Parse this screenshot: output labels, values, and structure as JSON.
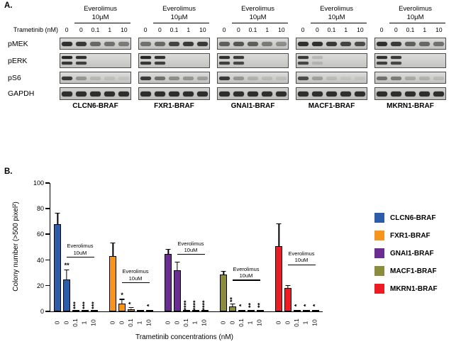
{
  "panelA": {
    "label": "A.",
    "everolimus_line1": "Everolimus",
    "everolimus_line2": "10µM",
    "trametinib_label": "Trametinib (nM)",
    "lane_labels": [
      "0",
      "0",
      "0.1",
      "1",
      "10"
    ],
    "row_labels": [
      "pMEK",
      "pERK",
      "pS6",
      "GAPDH"
    ],
    "blots": [
      {
        "name": "CLCN6-BRAF",
        "bands": {
          "pMEK": [
            0.85,
            0.8,
            0.55,
            0.5,
            0.45
          ],
          "pERK": [
            0.9,
            0.85,
            0,
            0,
            0
          ],
          "pS6": [
            0.8,
            0.3,
            0.12,
            0.08,
            0.05
          ],
          "GAPDH": [
            0.85,
            0.85,
            0.85,
            0.85,
            0.85
          ]
        }
      },
      {
        "name": "FXR1-BRAF",
        "bands": {
          "pMEK": [
            0.5,
            0.55,
            0.75,
            0.8,
            0.8
          ],
          "pERK": [
            0.9,
            0.85,
            0,
            0,
            0
          ],
          "pS6": [
            0.8,
            0.5,
            0.35,
            0.3,
            0.25
          ],
          "GAPDH": [
            0.85,
            0.85,
            0.85,
            0.85,
            0.85
          ]
        }
      },
      {
        "name": "GNAI1-BRAF",
        "bands": {
          "pMEK": [
            0.6,
            0.65,
            0.6,
            0.45,
            0.35
          ],
          "pERK": [
            0.85,
            0.8,
            0,
            0,
            0
          ],
          "pS6": [
            0.8,
            0.3,
            0.15,
            0.1,
            0.08
          ],
          "GAPDH": [
            0.85,
            0.85,
            0.85,
            0.85,
            0.85
          ]
        }
      },
      {
        "name": "MACF1-BRAF",
        "bands": {
          "pMEK": [
            0.85,
            0.85,
            0.8,
            0.75,
            0.7
          ],
          "pERK": [
            0.8,
            0.15,
            0,
            0,
            0
          ],
          "pS6": [
            0.7,
            0.25,
            0.1,
            0.05,
            0.05
          ],
          "GAPDH": [
            0.85,
            0.85,
            0.85,
            0.85,
            0.85
          ]
        }
      },
      {
        "name": "MKRN1-BRAF",
        "bands": {
          "pMEK": [
            0.85,
            0.8,
            0.6,
            0.55,
            0.5
          ],
          "pERK": [
            0.85,
            0.8,
            0,
            0,
            0
          ],
          "pS6": [
            0.5,
            0.45,
            0.2,
            0.15,
            0.1
          ],
          "GAPDH": [
            0.85,
            0.85,
            0.85,
            0.85,
            0.85
          ]
        }
      }
    ]
  },
  "panelB": {
    "label": "B."
  },
  "chart_data": {
    "type": "bar",
    "title": "",
    "xlabel": "Trametinib concentrations (nM)",
    "ylabel": "Colony number (>500 pixel²)",
    "ylim": [
      0,
      100
    ],
    "yticks": [
      0,
      20,
      40,
      60,
      80,
      100
    ],
    "categories": [
      "0",
      "0",
      "0.1",
      "1",
      "10"
    ],
    "legend_position": "right",
    "series": [
      {
        "name": "CLCN6-BRAF",
        "color": "#2D5DA8",
        "values": [
          68,
          25,
          1,
          1,
          1
        ],
        "errors": [
          8,
          7,
          0,
          0,
          0
        ],
        "sig": [
          "",
          "**",
          "***",
          "***",
          "***"
        ],
        "bracket": {
          "line1": "Everolimus",
          "line2": "10uM",
          "y": 42
        }
      },
      {
        "name": "FXR1-BRAF",
        "color": "#F7941E",
        "values": [
          43,
          6,
          1.5,
          0.5,
          1
        ],
        "errors": [
          10,
          3,
          1,
          0,
          0
        ],
        "sig": [
          "",
          "*",
          "*",
          "",
          "*"
        ],
        "bracket": {
          "line1": "Everolimus",
          "line2": "10uM",
          "y": 22
        }
      },
      {
        "name": "GNAI1-BRAF",
        "color": "#6B2D91",
        "values": [
          45,
          32,
          1,
          1,
          1
        ],
        "errors": [
          3,
          6,
          0,
          0,
          0
        ],
        "sig": [
          "",
          "",
          "****",
          "****",
          "****"
        ],
        "bracket": {
          "line1": "Everolimus",
          "line2": "10uM",
          "y": 44
        }
      },
      {
        "name": "MACF1-BRAF",
        "color": "#8B8C3C",
        "values": [
          29,
          4,
          1,
          1,
          1
        ],
        "errors": [
          2,
          1.5,
          0,
          0,
          0
        ],
        "sig": [
          "",
          "**",
          "*",
          "**",
          "**"
        ],
        "bracket": {
          "line1": "Everolimus",
          "line2": "10uM",
          "y": 24
        }
      },
      {
        "name": "MKRN1-BRAF",
        "color": "#EC1C24",
        "values": [
          51,
          18,
          1,
          1,
          1
        ],
        "errors": [
          17,
          2,
          0,
          0,
          0
        ],
        "sig": [
          "",
          "",
          "*",
          "*",
          "*"
        ],
        "bracket": {
          "line1": "Everolimus",
          "line2": "10uM",
          "y": 36
        }
      }
    ]
  }
}
